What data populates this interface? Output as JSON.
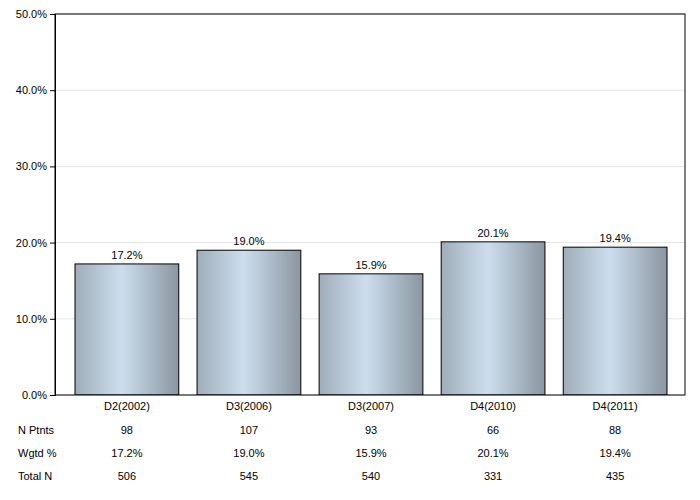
{
  "chart_data": {
    "type": "bar",
    "categories": [
      "D2(2002)",
      "D3(2006)",
      "D3(2007)",
      "D4(2010)",
      "D4(2011)"
    ],
    "values": [
      17.2,
      19.0,
      15.9,
      20.1,
      19.4
    ],
    "value_labels": [
      "17.2%",
      "19.0%",
      "15.9%",
      "20.1%",
      "19.4%"
    ],
    "data_labels": true,
    "color": "#b4c4d2",
    "ylim": [
      0,
      50
    ],
    "yticks": [
      {
        "value": 0,
        "label": "0.0%"
      },
      {
        "value": 10,
        "label": "10.0%"
      },
      {
        "value": 20,
        "label": "20.0%"
      },
      {
        "value": 30,
        "label": "30.0%"
      },
      {
        "value": 40,
        "label": "40.0%"
      },
      {
        "value": 50,
        "label": "50.0%"
      }
    ],
    "grid": true,
    "table_rows": [
      {
        "label": "N Ptnts",
        "values": [
          98,
          107,
          93,
          66,
          88
        ]
      },
      {
        "label": "Wgtd %",
        "values": [
          17.2,
          19.0,
          15.9,
          20.1,
          19.4
        ],
        "value_labels": [
          "17.2%",
          "19.0%",
          "15.9%",
          "20.1%",
          "19.4%"
        ]
      },
      {
        "label": "Total N",
        "values": [
          506,
          545,
          540,
          331,
          435
        ]
      }
    ]
  }
}
